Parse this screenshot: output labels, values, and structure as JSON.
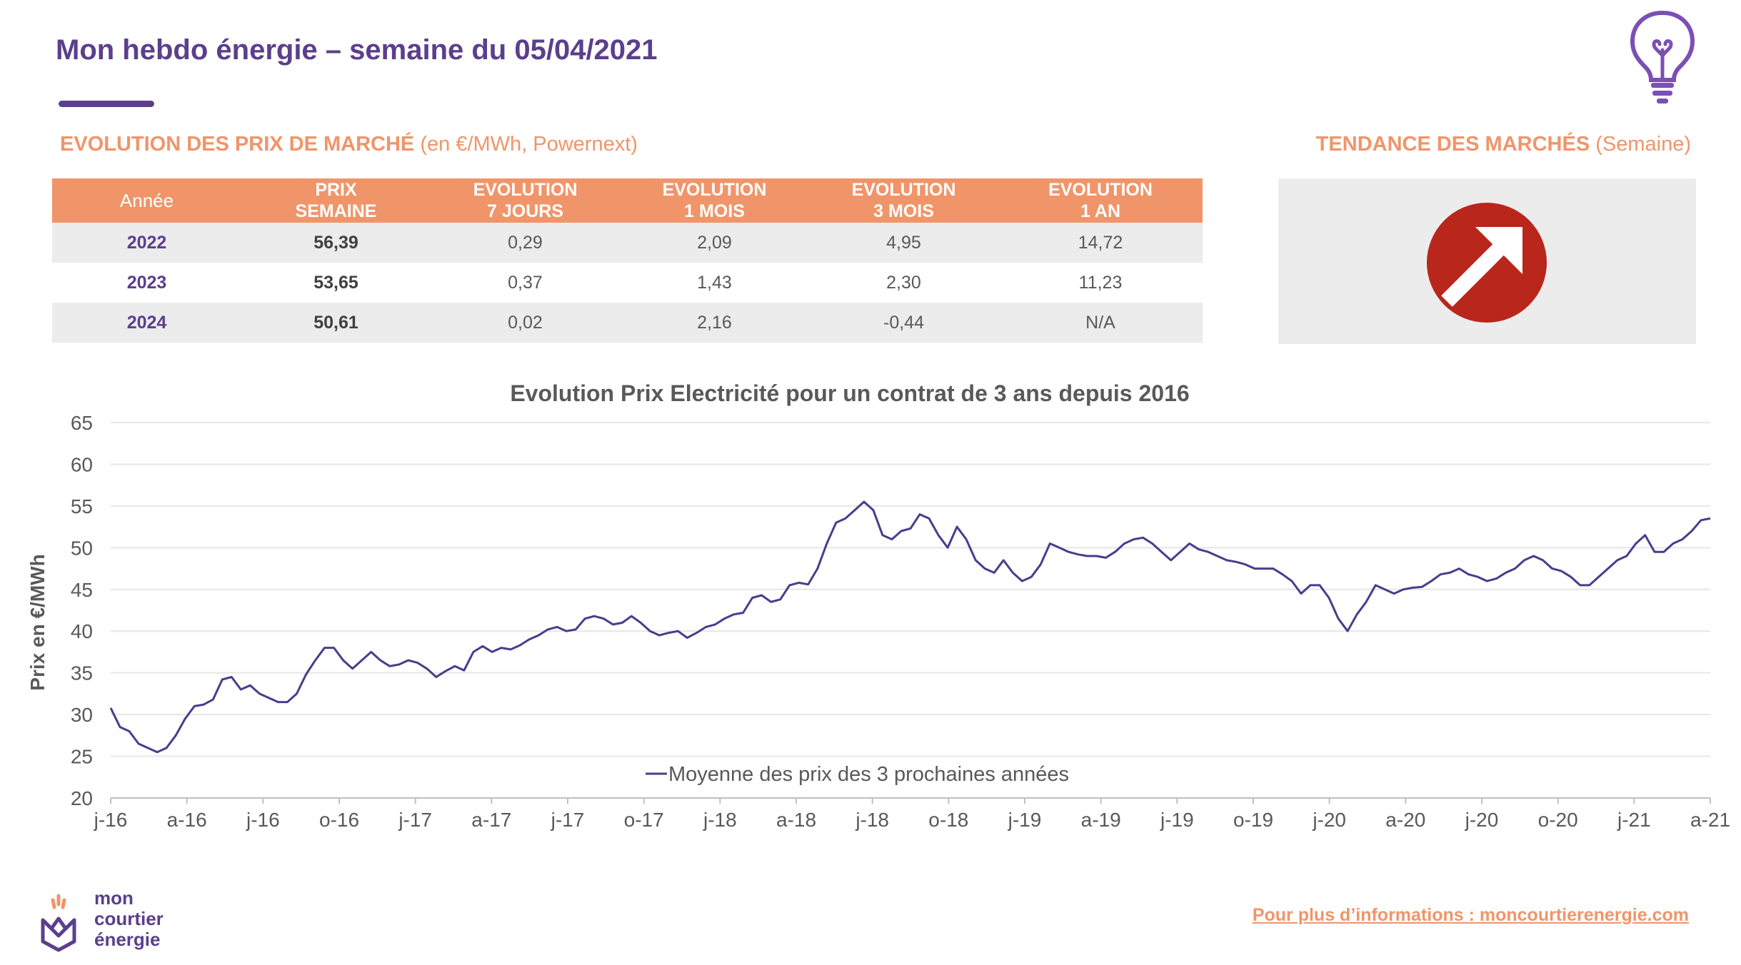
{
  "header": {
    "title": "Mon hebdo énergie – semaine du 05/04/2021"
  },
  "market_section": {
    "title_bold": "EVOLUTION DES PRIX DE MARCHÉ",
    "title_light": " (en €/MWh, Powernext)"
  },
  "trend_section": {
    "title_bold": "TENDANCE DES MARCHÉS",
    "title_light": " (Semaine)",
    "trend": "up-right-arrow",
    "color": "#b9261c"
  },
  "table": {
    "headers": [
      [
        "Année"
      ],
      [
        "PRIX",
        "SEMAINE"
      ],
      [
        "EVOLUTION",
        "7 JOURS"
      ],
      [
        "EVOLUTION",
        "1 MOIS"
      ],
      [
        "EVOLUTION",
        "3 MOIS"
      ],
      [
        "EVOLUTION",
        "1 AN"
      ]
    ],
    "rows": [
      [
        "2022",
        "56,39",
        "0,29",
        "2,09",
        "4,95",
        "14,72"
      ],
      [
        "2023",
        "53,65",
        "0,37",
        "1,43",
        "2,30",
        "11,23"
      ],
      [
        "2024",
        "50,61",
        "0,02",
        "2,16",
        "-0,44",
        "N/A"
      ]
    ]
  },
  "colors": {
    "accent": "#f0956a",
    "brand": "#5b3f8c",
    "line": "#4b3c8c"
  },
  "chart_data": {
    "type": "line",
    "title": "Evolution Prix Electricité pour un contrat de 3 ans depuis 2016",
    "ylabel": "Prix en €/MWh",
    "xlabel": "",
    "ylim": [
      20,
      65
    ],
    "yticks": [
      20,
      25,
      30,
      35,
      40,
      45,
      50,
      55,
      60,
      65
    ],
    "xticks": [
      "j-16",
      "a-16",
      "j-16",
      "o-16",
      "j-17",
      "a-17",
      "j-17",
      "o-17",
      "j-18",
      "a-18",
      "j-18",
      "o-18",
      "j-19",
      "a-19",
      "j-19",
      "o-19",
      "j-20",
      "a-20",
      "j-20",
      "o-20",
      "j-21",
      "a-21"
    ],
    "grid": true,
    "legend_position": "bottom",
    "series": [
      {
        "name": "Moyenne des prix des 3 prochaines années",
        "values": [
          30.8,
          28.5,
          28.0,
          26.5,
          26.0,
          25.5,
          26.0,
          27.5,
          29.5,
          31.0,
          31.2,
          31.8,
          34.2,
          34.5,
          33.0,
          33.5,
          32.5,
          32.0,
          31.5,
          31.5,
          32.5,
          34.8,
          36.5,
          38.0,
          38.0,
          36.5,
          35.5,
          36.5,
          37.5,
          36.5,
          35.8,
          36.0,
          36.5,
          36.2,
          35.5,
          34.5,
          35.2,
          35.8,
          35.3,
          37.5,
          38.2,
          37.5,
          38.0,
          37.8,
          38.3,
          39.0,
          39.5,
          40.2,
          40.5,
          40.0,
          40.2,
          41.5,
          41.8,
          41.5,
          40.8,
          41.0,
          41.8,
          41.0,
          40.0,
          39.5,
          39.8,
          40.0,
          39.2,
          39.8,
          40.5,
          40.8,
          41.5,
          42.0,
          42.2,
          44.0,
          44.3,
          43.5,
          43.8,
          45.5,
          45.8,
          45.6,
          47.5,
          50.5,
          53.0,
          53.5,
          54.5,
          55.5,
          54.5,
          51.5,
          51.0,
          52.0,
          52.3,
          54.0,
          53.5,
          51.5,
          50.0,
          52.5,
          51.0,
          48.5,
          47.5,
          47.0,
          48.5,
          47.0,
          46.0,
          46.5,
          48.0,
          50.5,
          50.0,
          49.5,
          49.2,
          49.0,
          49.0,
          48.8,
          49.5,
          50.5,
          51.0,
          51.2,
          50.5,
          49.5,
          48.5,
          49.5,
          50.5,
          49.8,
          49.5,
          49.0,
          48.5,
          48.3,
          48.0,
          47.5,
          47.5,
          47.5,
          46.8,
          46.0,
          44.5,
          45.5,
          45.5,
          44.0,
          41.5,
          40.0,
          42.0,
          43.5,
          45.5,
          45.0,
          44.5,
          45.0,
          45.2,
          45.3,
          46.0,
          46.8,
          47.0,
          47.5,
          46.8,
          46.5,
          46.0,
          46.3,
          47.0,
          47.5,
          48.5,
          49.0,
          48.5,
          47.5,
          47.2,
          46.5,
          45.5,
          45.5,
          46.5,
          47.5,
          48.5,
          49.0,
          50.5,
          51.5,
          49.5,
          49.5,
          50.5,
          51.0,
          52.0,
          53.3,
          53.5
        ]
      }
    ]
  },
  "footer": {
    "logo_lines": [
      "mon",
      "courtier",
      "énergie"
    ],
    "link_text": "Pour plus d’informations : moncourtierenergie.com"
  }
}
